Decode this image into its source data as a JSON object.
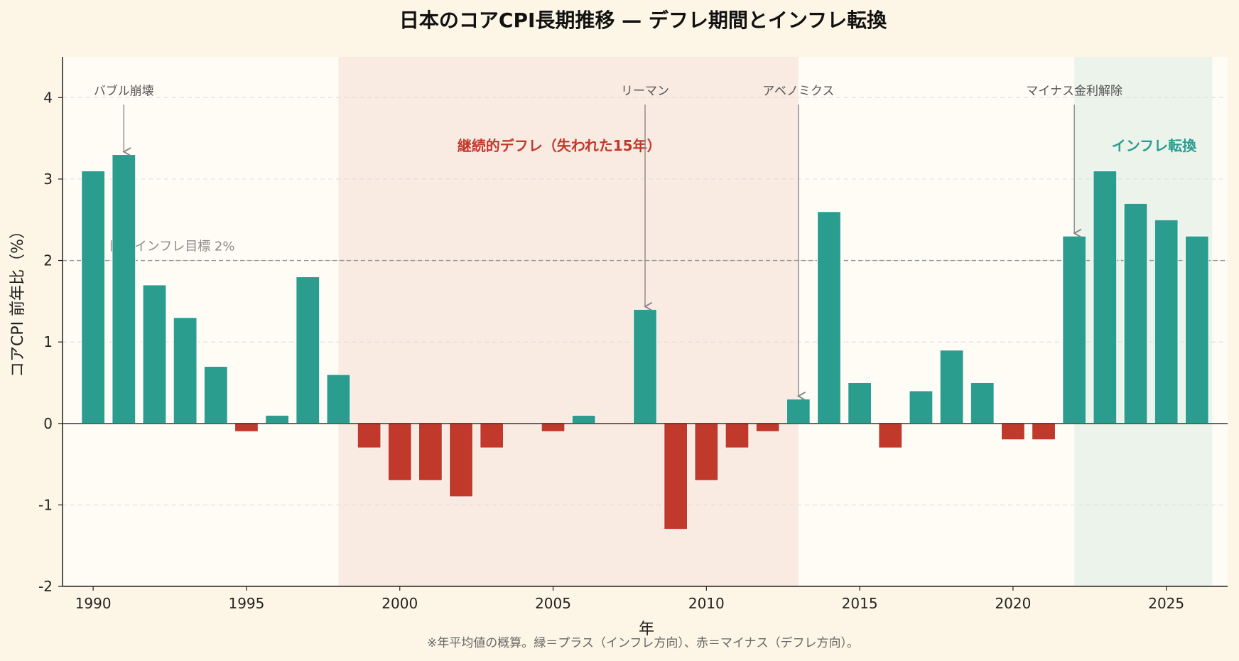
{
  "chart_data": {
    "type": "bar",
    "title": "日本のコアCPI長期推移 — デフレ期間とインフレ転換",
    "xlabel": "年",
    "ylabel": "コアCPI 前年比（%）",
    "ylim": [
      -2,
      4.5
    ],
    "xlim": [
      1989,
      2027
    ],
    "yticks": [
      -2,
      -1,
      0,
      1,
      2,
      3,
      4
    ],
    "xticks": [
      1990,
      1995,
      2000,
      2005,
      2010,
      2015,
      2020,
      2025
    ],
    "grid": "horizontal dashed",
    "x": [
      1990,
      1991,
      1992,
      1993,
      1994,
      1995,
      1996,
      1997,
      1998,
      1999,
      2000,
      2001,
      2002,
      2003,
      2004,
      2005,
      2006,
      2007,
      2008,
      2009,
      2010,
      2011,
      2012,
      2013,
      2014,
      2015,
      2016,
      2017,
      2018,
      2019,
      2020,
      2021,
      2022,
      2023,
      2024,
      2025,
      2026
    ],
    "values": [
      3.1,
      3.3,
      1.7,
      1.3,
      0.7,
      -0.1,
      0.1,
      1.8,
      0.6,
      -0.3,
      -0.7,
      -0.7,
      -0.9,
      -0.3,
      0.0,
      -0.1,
      0.1,
      0.0,
      1.4,
      -1.3,
      -0.7,
      -0.3,
      -0.1,
      0.3,
      2.6,
      0.5,
      -0.3,
      0.4,
      0.9,
      0.5,
      -0.2,
      -0.2,
      2.3,
      3.1,
      2.7,
      2.5,
      2.3
    ],
    "colors": {
      "positive": "#2a9d8f",
      "negative": "#c0392b"
    },
    "reference_line": {
      "y": 2,
      "label": "日銀インフレ目標 2%"
    },
    "regions": [
      {
        "x0": 1998,
        "x1": 2013,
        "label": "継続的デフレ（失われた15年）",
        "color": "#c0392b"
      },
      {
        "x0": 2022,
        "x1": 2026.5,
        "label": "インフレ転換",
        "color": "#2a9d8f"
      }
    ],
    "annotations": [
      {
        "text": "バブル崩壊",
        "x": 1991,
        "y": 3.3
      },
      {
        "text": "リーマン",
        "x": 2008,
        "y": 1.4
      },
      {
        "text": "アベノミクス",
        "x": 2013,
        "y": 0.3
      },
      {
        "text": "マイナス金利解除",
        "x": 2022,
        "y": 2.3
      }
    ],
    "footnote": "※年平均値の概算。緑＝プラス（インフレ方向）、赤＝マイナス（デフレ方向）。"
  }
}
